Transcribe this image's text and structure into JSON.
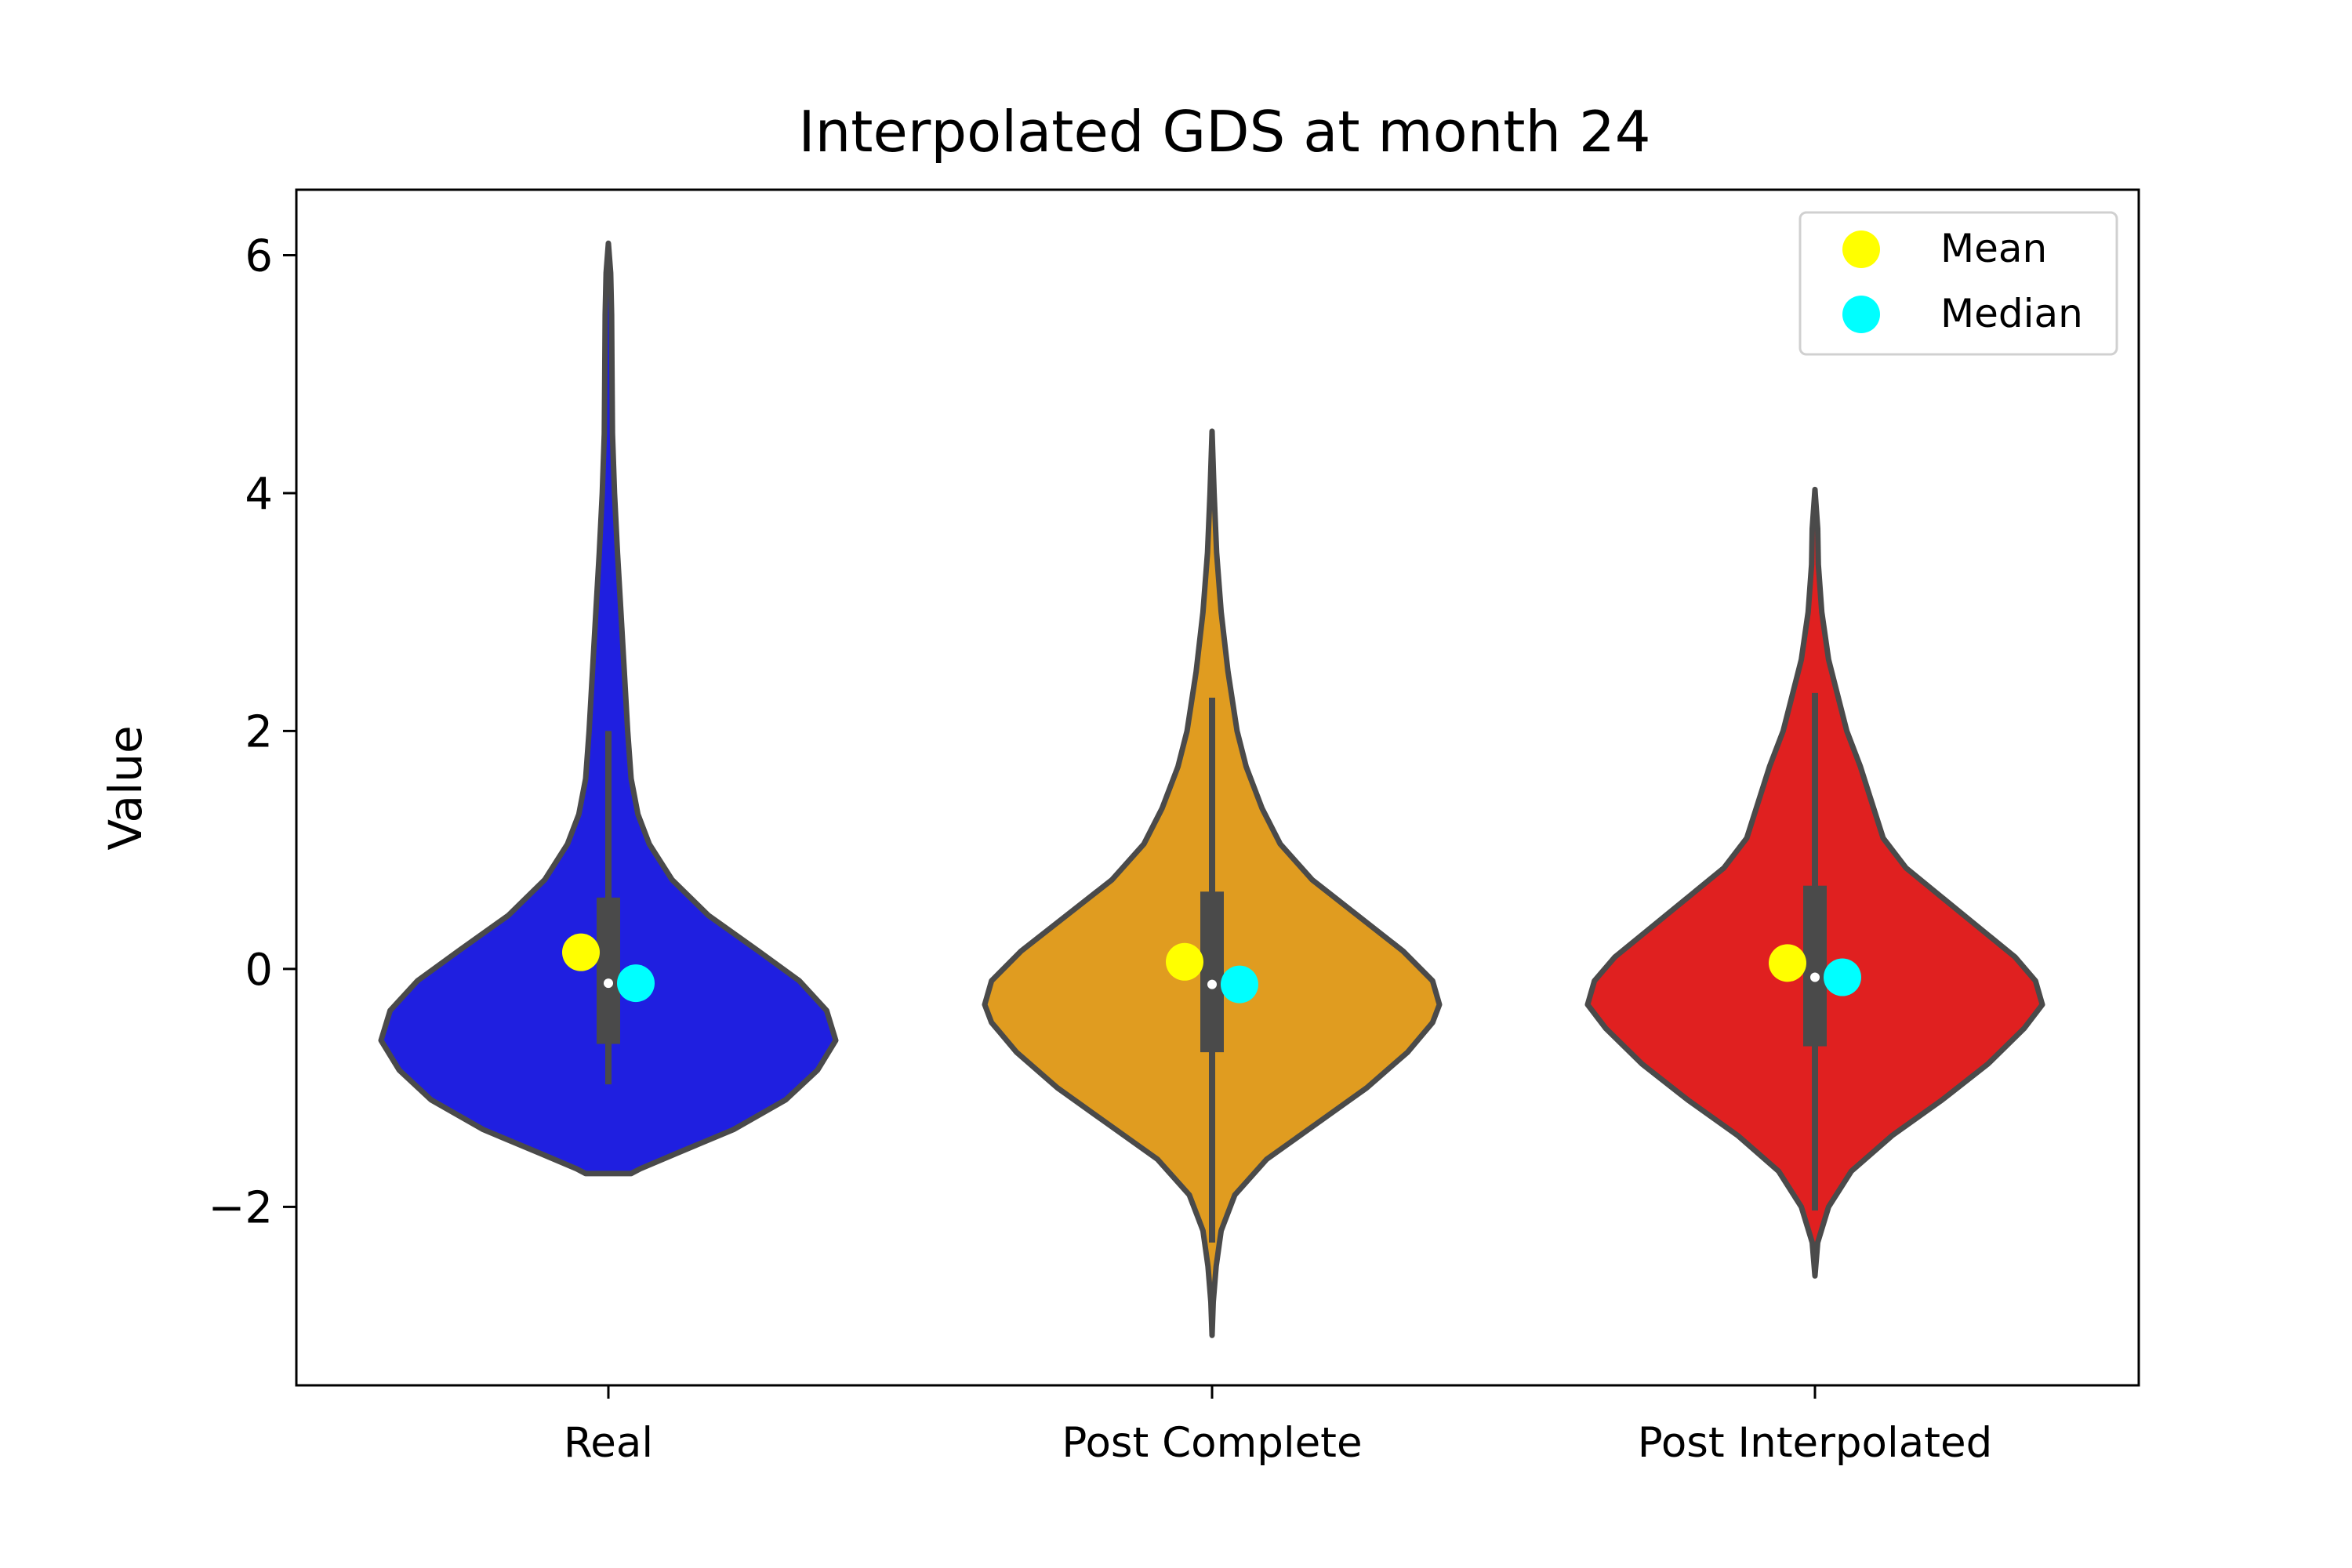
{
  "chart_data": {
    "type": "violin",
    "title": "Interpolated GDS at month 24",
    "xlabel": "",
    "ylabel": "Value",
    "ylim": [
      -3.5,
      6.55
    ],
    "yticks": [
      -2,
      0,
      2,
      4,
      6
    ],
    "ytick_labels": [
      "−2",
      "0",
      "2",
      "4",
      "6"
    ],
    "grid": false,
    "legend": {
      "placement": "top-right",
      "entries": [
        {
          "label": "Mean",
          "color": "#ffff00"
        },
        {
          "label": "Median",
          "color": "#00ffff"
        }
      ]
    },
    "outline_color": "#4a4a4a",
    "categories": [
      "Real",
      "Post Complete",
      "Post Interpolated"
    ],
    "violins": [
      {
        "category": "Real",
        "color": "#1f1fe0",
        "min": -1.72,
        "max": 6.1,
        "whisker_low": -0.97,
        "whisker_high": 2.0,
        "q1": -0.63,
        "q3": 0.6,
        "median": -0.12,
        "mean_marker": 0.14,
        "median_marker": -0.12,
        "flat_bottom": true,
        "profile": [
          [
            -1.72,
            0.1
          ],
          [
            -1.68,
            0.14
          ],
          [
            -1.55,
            0.3
          ],
          [
            -1.35,
            0.55
          ],
          [
            -1.1,
            0.78
          ],
          [
            -0.85,
            0.92
          ],
          [
            -0.6,
            1.0
          ],
          [
            -0.35,
            0.96
          ],
          [
            -0.1,
            0.84
          ],
          [
            0.15,
            0.66
          ],
          [
            0.45,
            0.44
          ],
          [
            0.75,
            0.28
          ],
          [
            1.05,
            0.18
          ],
          [
            1.3,
            0.13
          ],
          [
            1.6,
            0.1
          ],
          [
            2.0,
            0.085
          ],
          [
            2.5,
            0.07
          ],
          [
            3.0,
            0.055
          ],
          [
            3.5,
            0.04
          ],
          [
            4.0,
            0.027
          ],
          [
            4.5,
            0.018
          ],
          [
            5.0,
            0.016
          ],
          [
            5.5,
            0.014
          ],
          [
            5.85,
            0.01
          ],
          [
            6.1,
            0.0
          ]
        ]
      },
      {
        "category": "Post Complete",
        "color": "#e09c20",
        "min": -3.08,
        "max": 4.52,
        "whisker_low": -2.3,
        "whisker_high": 2.28,
        "q1": -0.7,
        "q3": 0.65,
        "median": -0.13,
        "mean_marker": 0.06,
        "median_marker": -0.13,
        "flat_bottom": false,
        "profile": [
          [
            -3.08,
            0.0
          ],
          [
            -2.8,
            0.005
          ],
          [
            -2.5,
            0.018
          ],
          [
            -2.2,
            0.04
          ],
          [
            -1.9,
            0.1
          ],
          [
            -1.6,
            0.24
          ],
          [
            -1.3,
            0.46
          ],
          [
            -1.0,
            0.68
          ],
          [
            -0.7,
            0.86
          ],
          [
            -0.45,
            0.97
          ],
          [
            -0.3,
            1.0
          ],
          [
            -0.1,
            0.97
          ],
          [
            0.15,
            0.84
          ],
          [
            0.45,
            0.64
          ],
          [
            0.75,
            0.44
          ],
          [
            1.05,
            0.3
          ],
          [
            1.35,
            0.22
          ],
          [
            1.7,
            0.15
          ],
          [
            2.0,
            0.11
          ],
          [
            2.5,
            0.07
          ],
          [
            3.0,
            0.04
          ],
          [
            3.5,
            0.02
          ],
          [
            4.0,
            0.009
          ],
          [
            4.52,
            0.0
          ]
        ]
      },
      {
        "category": "Post Interpolated",
        "color": "#e02020",
        "min": -2.58,
        "max": 4.03,
        "whisker_low": -2.03,
        "whisker_high": 2.32,
        "q1": -0.65,
        "q3": 0.7,
        "median": -0.07,
        "mean_marker": 0.05,
        "median_marker": -0.07,
        "flat_bottom": false,
        "profile": [
          [
            -2.58,
            0.0
          ],
          [
            -2.3,
            0.012
          ],
          [
            -2.0,
            0.06
          ],
          [
            -1.7,
            0.16
          ],
          [
            -1.4,
            0.34
          ],
          [
            -1.1,
            0.56
          ],
          [
            -0.8,
            0.76
          ],
          [
            -0.5,
            0.92
          ],
          [
            -0.3,
            1.0
          ],
          [
            -0.1,
            0.97
          ],
          [
            0.1,
            0.88
          ],
          [
            0.35,
            0.72
          ],
          [
            0.6,
            0.56
          ],
          [
            0.85,
            0.4
          ],
          [
            1.1,
            0.3
          ],
          [
            1.4,
            0.25
          ],
          [
            1.7,
            0.2
          ],
          [
            2.0,
            0.14
          ],
          [
            2.3,
            0.1
          ],
          [
            2.6,
            0.06
          ],
          [
            3.0,
            0.03
          ],
          [
            3.4,
            0.015
          ],
          [
            3.7,
            0.012
          ],
          [
            4.03,
            0.0
          ]
        ]
      }
    ]
  }
}
